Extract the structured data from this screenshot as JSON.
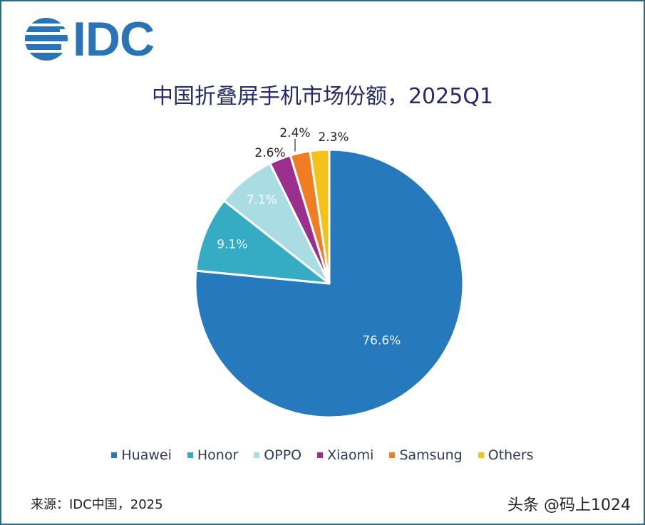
{
  "logo": {
    "text": "IDC",
    "icon": "idc-globe-icon"
  },
  "title": "中国折叠屏手机市场份额，2025Q1",
  "chart_data": {
    "type": "pie",
    "title": "中国折叠屏手机市场份额，2025Q1",
    "start_angle": "12 o'clock, clockwise",
    "categories": [
      "Huawei",
      "Honor",
      "OPPO",
      "Xiaomi",
      "Samsung",
      "Others"
    ],
    "values": [
      76.6,
      9.1,
      7.1,
      2.6,
      2.4,
      2.3
    ],
    "labels": [
      "76.6%",
      "9.1%",
      "7.1%",
      "2.6%",
      "2.4%",
      "2.3%"
    ],
    "colors": [
      "#2779bd",
      "#36acc4",
      "#a9dde3",
      "#9b2f8e",
      "#f07d22",
      "#f5c21b"
    ],
    "legend_position": "bottom"
  },
  "legend": [
    {
      "label": "Huawei",
      "color": "#2779bd"
    },
    {
      "label": "Honor",
      "color": "#36acc4"
    },
    {
      "label": "OPPO",
      "color": "#a9dde3"
    },
    {
      "label": "Xiaomi",
      "color": "#9b2f8e"
    },
    {
      "label": "Samsung",
      "color": "#f07d22"
    },
    {
      "label": "Others",
      "color": "#f5c21b"
    }
  ],
  "footer": {
    "source": "来源：IDC中国，2025",
    "watermark": "头条 @码上1024"
  }
}
